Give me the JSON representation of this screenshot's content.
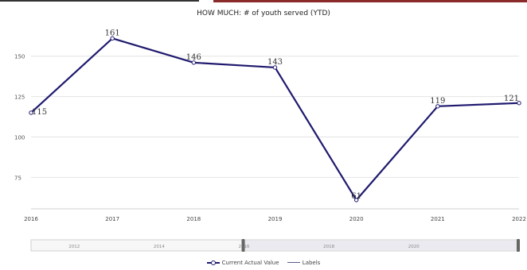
{
  "chart_data": {
    "type": "line",
    "title": "HOW MUCH: # of youth served (YTD)",
    "x": [
      "2016",
      "2017",
      "2018",
      "2019",
      "2020",
      "2021",
      "2022"
    ],
    "series": [
      {
        "name": "Current Actual Value",
        "values": [
          115,
          161,
          146,
          143,
          61,
          119,
          121
        ],
        "color": "#1f1a6e"
      }
    ],
    "data_labels": [
      "115",
      "161",
      "146",
      "143",
      "61",
      "119",
      "121"
    ],
    "y_ticks": [
      "75",
      "100",
      "125",
      "150"
    ],
    "ylim": [
      58,
      170
    ],
    "grid": true,
    "legend_position": "bottom",
    "legend": [
      "Current Actual Value",
      "Labels"
    ],
    "navigator": {
      "ticks": [
        "2012",
        "2014",
        "2016",
        "2018",
        "2020"
      ],
      "selected_range": [
        "2016",
        "2022"
      ]
    }
  }
}
